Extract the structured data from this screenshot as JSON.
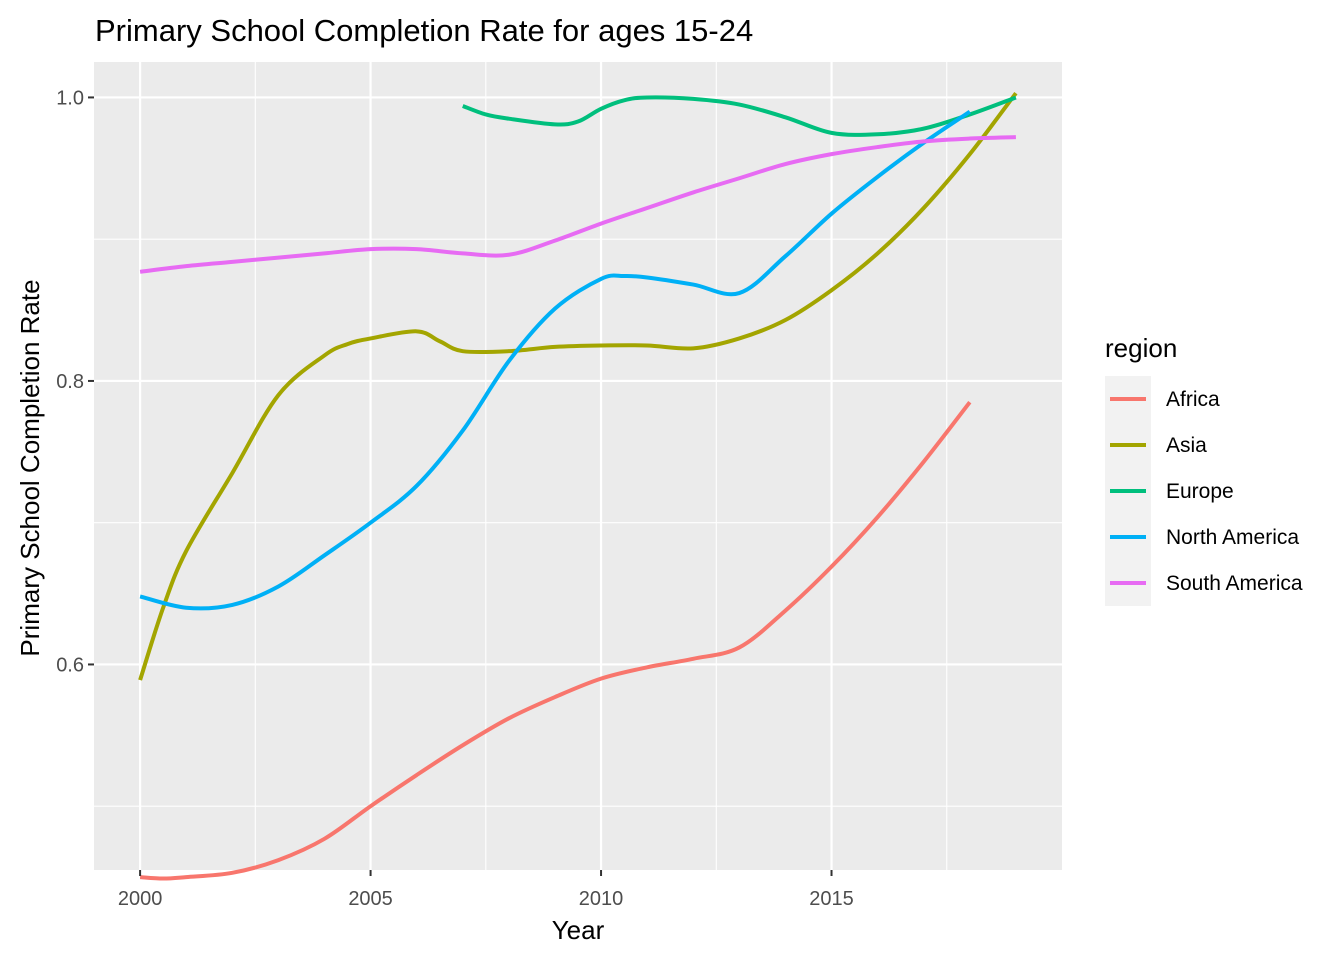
{
  "chart_data": {
    "type": "line",
    "title": "Primary School Completion Rate for ages 15-24",
    "xlabel": "Year",
    "ylabel": "Primary School Completion Rate",
    "xlim": [
      1999.0,
      2020.0
    ],
    "ylim": [
      0.455,
      1.025
    ],
    "x_ticks": [
      2000,
      2005,
      2010,
      2015
    ],
    "x_tick_labels": [
      "2000",
      "2005",
      "2010",
      "2015"
    ],
    "y_ticks": [
      0.6,
      0.8,
      1.0
    ],
    "y_tick_labels": [
      "0.6",
      "0.8",
      "1.0"
    ],
    "grid": true,
    "legend": {
      "title": "region",
      "position": "right"
    },
    "series": [
      {
        "name": "Africa",
        "color": "#F8766D",
        "x": [
          2000,
          2000.5,
          2001,
          2002,
          2003,
          2004,
          2005,
          2006,
          2007,
          2008,
          2009,
          2010,
          2011,
          2012,
          2013,
          2014,
          2015,
          2016,
          2017,
          2018
        ],
        "y": [
          0.45,
          0.449,
          0.45,
          0.453,
          0.462,
          0.477,
          0.5,
          0.522,
          0.543,
          0.562,
          0.577,
          0.59,
          0.598,
          0.604,
          0.612,
          0.638,
          0.669,
          0.704,
          0.743,
          0.785
        ]
      },
      {
        "name": "Asia",
        "color": "#A3A500",
        "x": [
          2000,
          2000.5,
          2001,
          2002,
          2003,
          2004,
          2004.5,
          2005,
          2006,
          2006.5,
          2007,
          2008,
          2009,
          2010,
          2011,
          2012,
          2013,
          2014,
          2015,
          2016,
          2017,
          2018,
          2019
        ],
        "y": [
          0.589,
          0.64,
          0.68,
          0.735,
          0.79,
          0.818,
          0.826,
          0.83,
          0.835,
          0.828,
          0.821,
          0.821,
          0.824,
          0.825,
          0.825,
          0.823,
          0.83,
          0.843,
          0.864,
          0.89,
          0.922,
          0.96,
          1.003
        ]
      },
      {
        "name": "Europe",
        "color": "#00BF7D",
        "x": [
          2007,
          2007.5,
          2008,
          2009,
          2009.5,
          2010,
          2010.5,
          2011,
          2012,
          2013,
          2014,
          2015,
          2016,
          2017,
          2018,
          2019
        ],
        "y": [
          0.994,
          0.988,
          0.985,
          0.981,
          0.983,
          0.992,
          0.998,
          1.0,
          0.999,
          0.995,
          0.986,
          0.975,
          0.974,
          0.978,
          0.988,
          1.0
        ]
      },
      {
        "name": "North America",
        "color": "#00B0F6",
        "x": [
          2000,
          2001,
          2002,
          2003,
          2004,
          2005,
          2006,
          2007,
          2008,
          2009,
          2010,
          2010.5,
          2011,
          2012,
          2013,
          2014,
          2015,
          2016,
          2017,
          2018
        ],
        "y": [
          0.648,
          0.64,
          0.642,
          0.655,
          0.677,
          0.7,
          0.726,
          0.765,
          0.814,
          0.851,
          0.872,
          0.874,
          0.873,
          0.868,
          0.862,
          0.888,
          0.918,
          0.944,
          0.968,
          0.99
        ]
      },
      {
        "name": "South America",
        "color": "#E76BF3",
        "x": [
          2000,
          2001,
          2002,
          2003,
          2004,
          2005,
          2006,
          2007,
          2008,
          2009,
          2010,
          2011,
          2012,
          2013,
          2014,
          2015,
          2016,
          2017,
          2018,
          2019
        ],
        "y": [
          0.877,
          0.881,
          0.884,
          0.887,
          0.89,
          0.893,
          0.893,
          0.89,
          0.889,
          0.899,
          0.911,
          0.922,
          0.933,
          0.943,
          0.953,
          0.96,
          0.965,
          0.969,
          0.971,
          0.972
        ]
      }
    ]
  }
}
